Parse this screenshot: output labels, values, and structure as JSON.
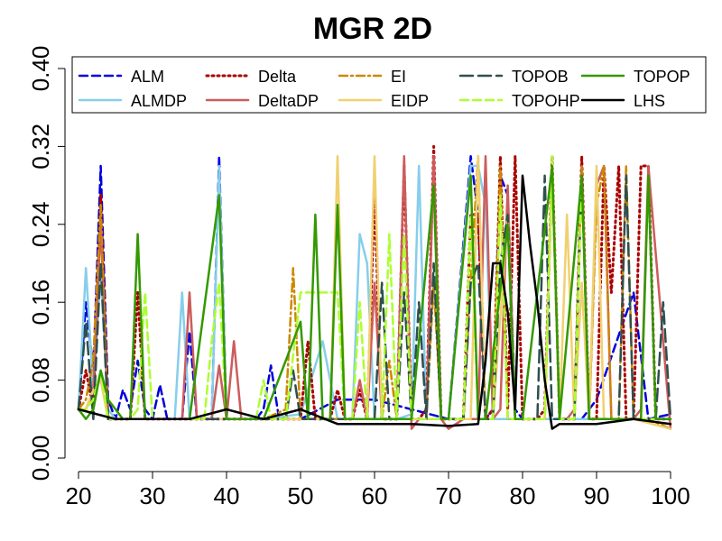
{
  "chart_data": {
    "type": "line",
    "title": "MGR 2D",
    "xlabel": "",
    "ylabel": "",
    "xlim": [
      20,
      100
    ],
    "ylim": [
      0.0,
      0.4
    ],
    "x_ticks": [
      "20",
      "30",
      "40",
      "50",
      "60",
      "70",
      "80",
      "90",
      "100"
    ],
    "y_ticks": [
      "0.00",
      "0.08",
      "0.16",
      "0.24",
      "0.32",
      "0.40"
    ],
    "legend_position": "top",
    "grid": false,
    "series": [
      {
        "name": "ALM",
        "color": "#0000dd",
        "dash": "dashed",
        "x": [
          20,
          21,
          22,
          23,
          24,
          25,
          26,
          27,
          28,
          29,
          30,
          31,
          32,
          33,
          34,
          35,
          36,
          37,
          38,
          39,
          40,
          41,
          42,
          43,
          44,
          45,
          46,
          47,
          48,
          49,
          50,
          55,
          60,
          65,
          70,
          73,
          74,
          75,
          76,
          77,
          78,
          79,
          80,
          85,
          88,
          90,
          95,
          97,
          100
        ],
        "values": [
          0.05,
          0.16,
          0.09,
          0.3,
          0.06,
          0.04,
          0.07,
          0.05,
          0.1,
          0.05,
          0.04,
          0.075,
          0.04,
          0.04,
          0.04,
          0.13,
          0.04,
          0.04,
          0.04,
          0.31,
          0.04,
          0.04,
          0.04,
          0.04,
          0.04,
          0.05,
          0.095,
          0.045,
          0.04,
          0.04,
          0.04,
          0.06,
          0.06,
          0.05,
          0.04,
          0.31,
          0.25,
          0.04,
          0.05,
          0.29,
          0.27,
          0.05,
          0.04,
          0.04,
          0.04,
          0.06,
          0.17,
          0.04,
          0.045
        ]
      },
      {
        "name": "ALMDP",
        "color": "#87ceeb",
        "dash": "solid",
        "x": [
          20,
          21,
          22,
          23,
          24,
          25,
          30,
          33,
          34,
          35,
          38,
          39,
          40,
          45,
          50,
          53,
          55,
          57,
          58,
          59,
          60,
          63,
          65,
          66,
          67,
          70,
          73,
          74,
          75,
          76,
          78,
          80,
          85,
          90,
          95,
          100
        ],
        "values": [
          0.05,
          0.195,
          0.07,
          0.19,
          0.05,
          0.04,
          0.04,
          0.04,
          0.17,
          0.04,
          0.04,
          0.3,
          0.04,
          0.04,
          0.045,
          0.12,
          0.04,
          0.04,
          0.23,
          0.2,
          0.04,
          0.04,
          0.045,
          0.3,
          0.04,
          0.04,
          0.3,
          0.3,
          0.26,
          0.04,
          0.04,
          0.04,
          0.04,
          0.04,
          0.04,
          0.04
        ]
      },
      {
        "name": "Delta",
        "color": "#aa0000",
        "dash": "dotted",
        "x": [
          20,
          21,
          22,
          23,
          24,
          25,
          26,
          27,
          28,
          29,
          30,
          35,
          40,
          50,
          51,
          52,
          54,
          55,
          56,
          57,
          58,
          59,
          60,
          61,
          62,
          63,
          64,
          65,
          66,
          67,
          68,
          69,
          70,
          71,
          72,
          73,
          74,
          75,
          76,
          77,
          78,
          79,
          80,
          81,
          82,
          83,
          84,
          85,
          86,
          87,
          88,
          89,
          90,
          91,
          92,
          93,
          94,
          95,
          96,
          97,
          98,
          99,
          100
        ],
        "values": [
          0.05,
          0.09,
          0.05,
          0.27,
          0.04,
          0.04,
          0.04,
          0.04,
          0.17,
          0.04,
          0.04,
          0.04,
          0.04,
          0.04,
          0.12,
          0.04,
          0.04,
          0.07,
          0.04,
          0.04,
          0.07,
          0.04,
          0.27,
          0.04,
          0.04,
          0.04,
          0.3,
          0.04,
          0.04,
          0.05,
          0.32,
          0.04,
          0.04,
          0.04,
          0.04,
          0.25,
          0.25,
          0.04,
          0.05,
          0.31,
          0.05,
          0.31,
          0.04,
          0.04,
          0.04,
          0.05,
          0.31,
          0.04,
          0.04,
          0.04,
          0.31,
          0.04,
          0.04,
          0.3,
          0.17,
          0.3,
          0.04,
          0.04,
          0.3,
          0.3,
          0.04,
          0.04,
          0.04
        ]
      },
      {
        "name": "DeltaDP",
        "color": "#cd5c5c",
        "dash": "solid",
        "x": [
          20,
          21,
          22,
          23,
          24,
          25,
          30,
          34,
          35,
          36,
          37,
          38,
          39,
          40,
          41,
          42,
          45,
          50,
          55,
          56,
          57,
          58,
          59,
          60,
          61,
          62,
          63,
          64,
          65,
          66,
          67,
          68,
          69,
          70,
          72,
          73,
          74,
          75,
          76,
          77,
          78,
          79,
          80,
          82,
          83,
          84,
          85,
          86,
          87,
          88,
          89,
          90,
          91,
          92,
          93,
          94,
          95,
          96,
          97,
          100
        ],
        "values": [
          0.05,
          0.05,
          0.07,
          0.24,
          0.04,
          0.04,
          0.04,
          0.04,
          0.17,
          0.04,
          0.04,
          0.04,
          0.095,
          0.04,
          0.12,
          0.04,
          0.04,
          0.04,
          0.04,
          0.04,
          0.04,
          0.08,
          0.04,
          0.18,
          0.04,
          0.04,
          0.04,
          0.31,
          0.03,
          0.04,
          0.04,
          0.31,
          0.04,
          0.03,
          0.04,
          0.04,
          0.04,
          0.31,
          0.04,
          0.05,
          0.28,
          0.04,
          0.04,
          0.04,
          0.04,
          0.3,
          0.04,
          0.04,
          0.05,
          0.3,
          0.04,
          0.28,
          0.3,
          0.04,
          0.04,
          0.04,
          0.04,
          0.05,
          0.3,
          0.03
        ]
      },
      {
        "name": "EI",
        "color": "#cc8800",
        "dash": "dashdot",
        "x": [
          20,
          21,
          22,
          23,
          24,
          30,
          40,
          45,
          48,
          49,
          50,
          55,
          60,
          61,
          62,
          63,
          64,
          65,
          66,
          67,
          68,
          69,
          70,
          71,
          72,
          73,
          74,
          75,
          76,
          77,
          78,
          79,
          80,
          82,
          83,
          84,
          85,
          86,
          87,
          88,
          89,
          90,
          91,
          92,
          93,
          94,
          95,
          96,
          97,
          100
        ],
        "values": [
          0.05,
          0.06,
          0.1,
          0.26,
          0.04,
          0.04,
          0.04,
          0.04,
          0.05,
          0.195,
          0.04,
          0.04,
          0.04,
          0.04,
          0.1,
          0.04,
          0.04,
          0.04,
          0.04,
          0.04,
          0.18,
          0.04,
          0.04,
          0.04,
          0.04,
          0.18,
          0.31,
          0.04,
          0.04,
          0.3,
          0.04,
          0.04,
          0.04,
          0.04,
          0.04,
          0.3,
          0.04,
          0.04,
          0.04,
          0.3,
          0.04,
          0.26,
          0.3,
          0.04,
          0.04,
          0.3,
          0.04,
          0.04,
          0.04,
          0.03
        ]
      },
      {
        "name": "EIDP",
        "color": "#f0d070",
        "dash": "solid",
        "x": [
          20,
          21,
          22,
          23,
          24,
          30,
          40,
          50,
          54,
          55,
          56,
          59,
          60,
          61,
          62,
          65,
          70,
          72,
          73,
          74,
          75,
          76,
          78,
          79,
          80,
          82,
          83,
          84,
          85,
          86,
          87,
          88,
          89,
          90,
          91,
          92,
          95,
          100
        ],
        "values": [
          0.05,
          0.05,
          0.07,
          0.08,
          0.04,
          0.04,
          0.04,
          0.04,
          0.04,
          0.31,
          0.04,
          0.04,
          0.31,
          0.04,
          0.04,
          0.04,
          0.04,
          0.04,
          0.04,
          0.31,
          0.04,
          0.04,
          0.25,
          0.04,
          0.04,
          0.04,
          0.04,
          0.3,
          0.04,
          0.25,
          0.04,
          0.18,
          0.04,
          0.3,
          0.04,
          0.04,
          0.04,
          0.03
        ]
      },
      {
        "name": "TOPOB",
        "color": "#2f4f4f",
        "dash": "longdash",
        "x": [
          20,
          21,
          22,
          23,
          24,
          30,
          40,
          47,
          48,
          49,
          50,
          55,
          60,
          61,
          62,
          63,
          64,
          65,
          66,
          67,
          68,
          69,
          70,
          72,
          73,
          74,
          75,
          76,
          77,
          78,
          79,
          80,
          81,
          82,
          83,
          84,
          85,
          86,
          87,
          88,
          89,
          90,
          91,
          92,
          93,
          94,
          95,
          96,
          97,
          98,
          99,
          100
        ],
        "values": [
          0.05,
          0.14,
          0.04,
          0.2,
          0.04,
          0.04,
          0.04,
          0.04,
          0.04,
          0.09,
          0.04,
          0.04,
          0.04,
          0.18,
          0.04,
          0.04,
          0.17,
          0.04,
          0.16,
          0.04,
          0.2,
          0.04,
          0.04,
          0.04,
          0.18,
          0.2,
          0.04,
          0.04,
          0.2,
          0.25,
          0.04,
          0.04,
          0.04,
          0.04,
          0.29,
          0.04,
          0.04,
          0.04,
          0.04,
          0.29,
          0.04,
          0.04,
          0.04,
          0.04,
          0.04,
          0.29,
          0.04,
          0.04,
          0.04,
          0.04,
          0.16,
          0.04
        ]
      },
      {
        "name": "TOPOHP",
        "color": "#adff2f",
        "dash": "dashed",
        "x": [
          20,
          21,
          22,
          23,
          24,
          25,
          27,
          28,
          29,
          30,
          35,
          36,
          37,
          38,
          39,
          40,
          44,
          45,
          46,
          47,
          48,
          50,
          55,
          56,
          57,
          58,
          59,
          60,
          61,
          62,
          63,
          64,
          65,
          70,
          71,
          72,
          73,
          74,
          75,
          76,
          77,
          78,
          79,
          80,
          82,
          83,
          84,
          85,
          86,
          87,
          88,
          89,
          90,
          91,
          92,
          95,
          96,
          97,
          100
        ],
        "values": [
          0.05,
          0.05,
          0.06,
          0.09,
          0.04,
          0.04,
          0.04,
          0.05,
          0.17,
          0.04,
          0.04,
          0.04,
          0.04,
          0.12,
          0.18,
          0.04,
          0.04,
          0.08,
          0.04,
          0.04,
          0.04,
          0.17,
          0.17,
          0.04,
          0.04,
          0.16,
          0.04,
          0.04,
          0.04,
          0.23,
          0.04,
          0.23,
          0.04,
          0.04,
          0.04,
          0.04,
          0.25,
          0.04,
          0.04,
          0.04,
          0.27,
          0.04,
          0.04,
          0.04,
          0.04,
          0.04,
          0.31,
          0.04,
          0.04,
          0.04,
          0.29,
          0.04,
          0.04,
          0.04,
          0.04,
          0.04,
          0.04,
          0.04,
          0.04
        ]
      },
      {
        "name": "TOPOP",
        "color": "#339900",
        "dash": "solid",
        "x": [
          20,
          21,
          22,
          23,
          24,
          25,
          26,
          27,
          28,
          29,
          30,
          35,
          39,
          40,
          45,
          50,
          51,
          52,
          53,
          54,
          55,
          56,
          60,
          65,
          68,
          69,
          70,
          73,
          74,
          75,
          78,
          79,
          80,
          84,
          85,
          88,
          89,
          90,
          95,
          96,
          97,
          98,
          100
        ],
        "values": [
          0.05,
          0.04,
          0.05,
          0.09,
          0.06,
          0.05,
          0.04,
          0.04,
          0.23,
          0.04,
          0.04,
          0.04,
          0.27,
          0.04,
          0.04,
          0.14,
          0.04,
          0.25,
          0.04,
          0.04,
          0.26,
          0.04,
          0.04,
          0.04,
          0.28,
          0.04,
          0.04,
          0.29,
          0.04,
          0.04,
          0.24,
          0.04,
          0.04,
          0.3,
          0.04,
          0.29,
          0.04,
          0.04,
          0.04,
          0.04,
          0.29,
          0.04,
          0.04
        ]
      },
      {
        "name": "LHS",
        "color": "#000000",
        "dash": "solid",
        "x": [
          20,
          25,
          30,
          35,
          40,
          45,
          50,
          55,
          60,
          65,
          70,
          74,
          75,
          76,
          77,
          78,
          79,
          80,
          81,
          82,
          83,
          84,
          85,
          90,
          95,
          100
        ],
        "values": [
          0.05,
          0.04,
          0.04,
          0.04,
          0.05,
          0.04,
          0.05,
          0.035,
          0.035,
          0.035,
          0.033,
          0.035,
          0.1,
          0.2,
          0.2,
          0.15,
          0.05,
          0.29,
          0.22,
          0.16,
          0.08,
          0.03,
          0.035,
          0.035,
          0.04,
          0.035
        ]
      }
    ]
  }
}
